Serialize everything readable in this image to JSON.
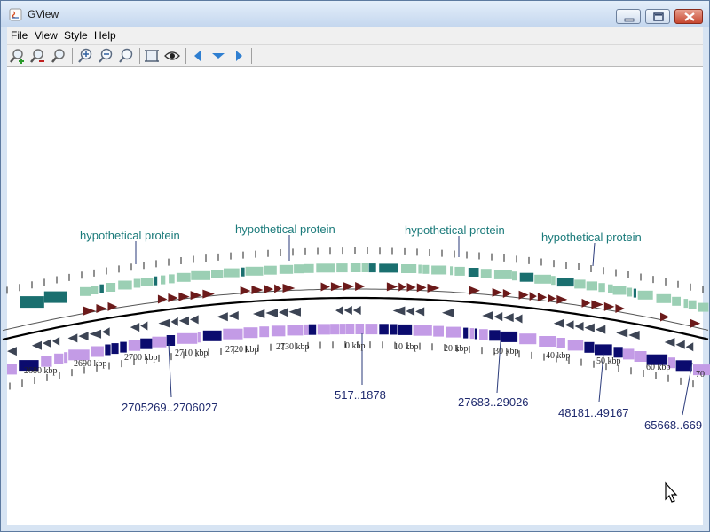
{
  "window": {
    "title": "GView"
  },
  "menu": [
    "File",
    "View",
    "Style",
    "Help"
  ],
  "toolbar": {
    "buttons": [
      {
        "name": "zoom-in-map-button",
        "icon": "magnifier-plus-icon"
      },
      {
        "name": "zoom-out-map-button",
        "icon": "magnifier-minus-icon"
      },
      {
        "name": "zoom-reset-button",
        "icon": "magnifier-icon"
      },
      {
        "name": "zoom-in-button",
        "icon": "zoom-in-icon"
      },
      {
        "name": "zoom-out-button",
        "icon": "zoom-out-icon"
      },
      {
        "name": "zoom-normal-button",
        "icon": "zoom-icon"
      },
      {
        "name": "fit-to-window-button",
        "icon": "frame-icon"
      },
      {
        "name": "show-all-button",
        "icon": "eye-icon"
      },
      {
        "name": "move-left-button",
        "icon": "arrow-left-icon"
      },
      {
        "name": "move-down-button",
        "icon": "arrow-down-icon"
      },
      {
        "name": "move-right-button",
        "icon": "arrow-right-icon"
      }
    ]
  },
  "map": {
    "feature_labels": [
      "hypothetical protein",
      "hypothetical protein",
      "hypothetical protein",
      "hypothetical protein"
    ],
    "location_labels": [
      "2705269..2706027",
      "517..1878",
      "27683..29026",
      "48181..49167",
      "65668..669"
    ],
    "tick_labels": [
      "2680 kbp",
      "2690 kbp",
      "2700 kbp",
      "2710 kbp",
      "2720 kbp",
      "2730 kbp",
      "0 kbp",
      "10 kbp",
      "20 kbp",
      "30 kbp",
      "40 kbp",
      "50 kbp",
      "60 kbp",
      "70"
    ],
    "colors": {
      "teal_light": "#9bcfb4",
      "teal_dark": "#1a6f6f",
      "cds_forward": "#6b1a1a",
      "cds_reverse": "#3c4454",
      "lilac": "#c39be6",
      "navy": "#0b0b6e",
      "label_teal": "#1a7a7a",
      "label_navy": "#1f2a6e"
    }
  }
}
